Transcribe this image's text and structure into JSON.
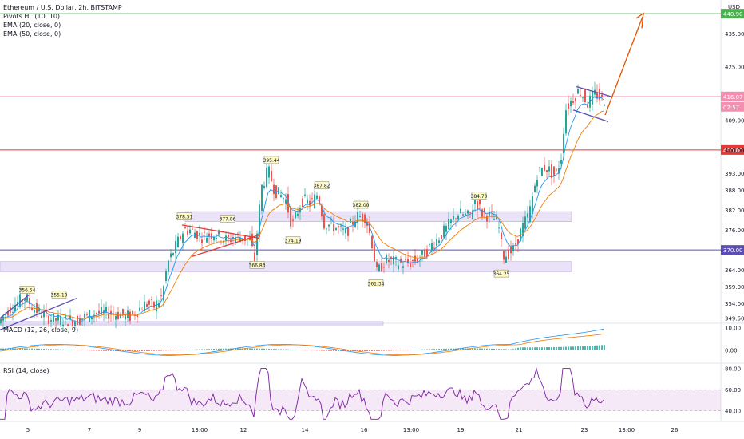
{
  "header": {
    "symbol": "Ethereum / U.S. Dollar, 2h, BITSTAMP",
    "indicators": [
      "Pivots HL (10, 10)",
      "EMA (20, close, 0)",
      "EMA (50, close, 0)"
    ]
  },
  "currency": "USD",
  "colors": {
    "up": "#26a69a",
    "down": "#ef5350",
    "ema20": "#2196f3",
    "ema50": "#f57c00",
    "red_line": "#e53935",
    "purple_line": "#5c4fb0",
    "green_line": "#4caf50",
    "zone": "#d8ccf2",
    "macd": "#2196f3",
    "signal": "#f57c00",
    "rsi": "#7b1fa2",
    "projection": "#e65100"
  },
  "chart_data": [
    {
      "type": "candlestick",
      "title": "Ethereum / U.S. Dollar, 2h, BITSTAMP",
      "x_ticks": [
        "5",
        "7",
        "9",
        "13:00",
        "12",
        "14",
        "16",
        "13:00",
        "19",
        "21",
        "23",
        "13:00",
        "26"
      ],
      "y_ticks": [
        "435.00",
        "425.00",
        "416.07",
        "409.00",
        "400.00",
        "393.00",
        "388.00",
        "382.00",
        "376.00",
        "370.00",
        "364.00",
        "359.00",
        "354.00",
        "349.50"
      ],
      "ylim": [
        348,
        445
      ],
      "horizontal_levels": [
        {
          "label": "440.90",
          "value": 440.9,
          "color": "green"
        },
        {
          "label": "416.07",
          "value": 416.07,
          "color": "pink"
        },
        {
          "label": "400.00",
          "value": 400.0,
          "color": "red"
        },
        {
          "label": "370.00",
          "value": 370.0,
          "color": "purple"
        }
      ],
      "countdown": "02:57",
      "pivot_labels": [
        {
          "text": "356.54",
          "value": 356.54
        },
        {
          "text": "355.10",
          "value": 355.1
        },
        {
          "text": "378.51",
          "value": 378.51
        },
        {
          "text": "377.86",
          "value": 377.86
        },
        {
          "text": "366.83",
          "value": 366.83
        },
        {
          "text": "374.19",
          "value": 374.19
        },
        {
          "text": "395.44",
          "value": 395.44
        },
        {
          "text": "387.82",
          "value": 387.82
        },
        {
          "text": "382.00",
          "value": 382.0
        },
        {
          "text": "361.34",
          "value": 361.34
        },
        {
          "text": "384.70",
          "value": 384.7
        },
        {
          "text": "364.25",
          "value": 364.25
        }
      ],
      "zones": [
        {
          "from": 378.5,
          "to": 381.5
        },
        {
          "from": 363.5,
          "to": 366.5
        },
        {
          "from": 347.5,
          "to": 348.5
        }
      ],
      "ema_series": [
        {
          "name": "EMA (20, close, 0)"
        },
        {
          "name": "EMA (50, close, 0)"
        }
      ]
    },
    {
      "type": "histogram",
      "title": "MACD (12, 26, close, 9)",
      "y_ticks": [
        "10.00",
        "0.00"
      ],
      "ylim": [
        -6,
        12
      ]
    },
    {
      "type": "line",
      "title": "RSI (14, close)",
      "y_ticks": [
        "80.00",
        "60.00",
        "40.00"
      ],
      "ylim": [
        30,
        85
      ],
      "band": [
        40,
        60
      ]
    }
  ]
}
